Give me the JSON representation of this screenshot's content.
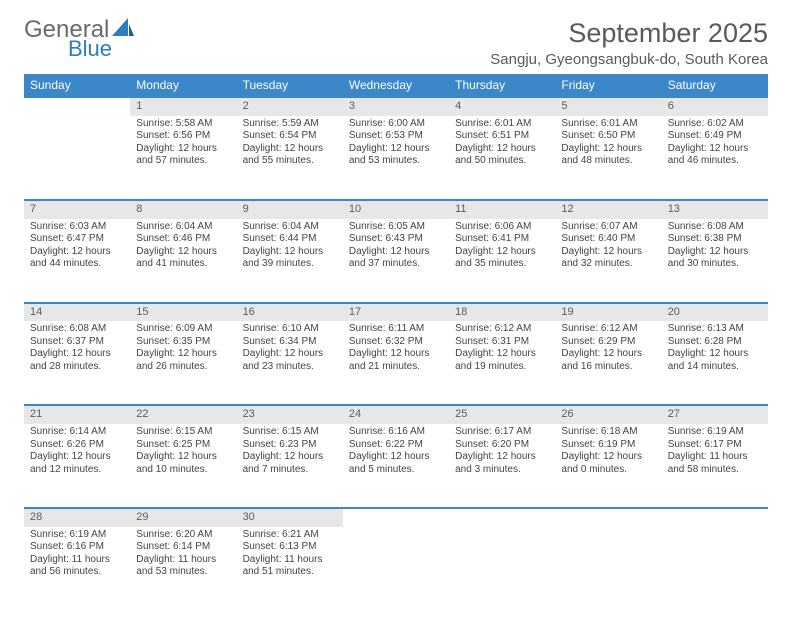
{
  "logo": {
    "text1": "General",
    "text2": "Blue"
  },
  "title": "September 2025",
  "location": "Sangju, Gyeongsangbuk-do, South Korea",
  "colors": {
    "accent": "#3b87c8",
    "dayBg": "#e6e7e8",
    "text": "#444444"
  },
  "dayNames": [
    "Sunday",
    "Monday",
    "Tuesday",
    "Wednesday",
    "Thursday",
    "Friday",
    "Saturday"
  ],
  "weeks": [
    [
      null,
      {
        "n": "1",
        "sr": "5:58 AM",
        "ss": "6:56 PM",
        "dl": "12 hours and 57 minutes."
      },
      {
        "n": "2",
        "sr": "5:59 AM",
        "ss": "6:54 PM",
        "dl": "12 hours and 55 minutes."
      },
      {
        "n": "3",
        "sr": "6:00 AM",
        "ss": "6:53 PM",
        "dl": "12 hours and 53 minutes."
      },
      {
        "n": "4",
        "sr": "6:01 AM",
        "ss": "6:51 PM",
        "dl": "12 hours and 50 minutes."
      },
      {
        "n": "5",
        "sr": "6:01 AM",
        "ss": "6:50 PM",
        "dl": "12 hours and 48 minutes."
      },
      {
        "n": "6",
        "sr": "6:02 AM",
        "ss": "6:49 PM",
        "dl": "12 hours and 46 minutes."
      }
    ],
    [
      {
        "n": "7",
        "sr": "6:03 AM",
        "ss": "6:47 PM",
        "dl": "12 hours and 44 minutes."
      },
      {
        "n": "8",
        "sr": "6:04 AM",
        "ss": "6:46 PM",
        "dl": "12 hours and 41 minutes."
      },
      {
        "n": "9",
        "sr": "6:04 AM",
        "ss": "6:44 PM",
        "dl": "12 hours and 39 minutes."
      },
      {
        "n": "10",
        "sr": "6:05 AM",
        "ss": "6:43 PM",
        "dl": "12 hours and 37 minutes."
      },
      {
        "n": "11",
        "sr": "6:06 AM",
        "ss": "6:41 PM",
        "dl": "12 hours and 35 minutes."
      },
      {
        "n": "12",
        "sr": "6:07 AM",
        "ss": "6:40 PM",
        "dl": "12 hours and 32 minutes."
      },
      {
        "n": "13",
        "sr": "6:08 AM",
        "ss": "6:38 PM",
        "dl": "12 hours and 30 minutes."
      }
    ],
    [
      {
        "n": "14",
        "sr": "6:08 AM",
        "ss": "6:37 PM",
        "dl": "12 hours and 28 minutes."
      },
      {
        "n": "15",
        "sr": "6:09 AM",
        "ss": "6:35 PM",
        "dl": "12 hours and 26 minutes."
      },
      {
        "n": "16",
        "sr": "6:10 AM",
        "ss": "6:34 PM",
        "dl": "12 hours and 23 minutes."
      },
      {
        "n": "17",
        "sr": "6:11 AM",
        "ss": "6:32 PM",
        "dl": "12 hours and 21 minutes."
      },
      {
        "n": "18",
        "sr": "6:12 AM",
        "ss": "6:31 PM",
        "dl": "12 hours and 19 minutes."
      },
      {
        "n": "19",
        "sr": "6:12 AM",
        "ss": "6:29 PM",
        "dl": "12 hours and 16 minutes."
      },
      {
        "n": "20",
        "sr": "6:13 AM",
        "ss": "6:28 PM",
        "dl": "12 hours and 14 minutes."
      }
    ],
    [
      {
        "n": "21",
        "sr": "6:14 AM",
        "ss": "6:26 PM",
        "dl": "12 hours and 12 minutes."
      },
      {
        "n": "22",
        "sr": "6:15 AM",
        "ss": "6:25 PM",
        "dl": "12 hours and 10 minutes."
      },
      {
        "n": "23",
        "sr": "6:15 AM",
        "ss": "6:23 PM",
        "dl": "12 hours and 7 minutes."
      },
      {
        "n": "24",
        "sr": "6:16 AM",
        "ss": "6:22 PM",
        "dl": "12 hours and 5 minutes."
      },
      {
        "n": "25",
        "sr": "6:17 AM",
        "ss": "6:20 PM",
        "dl": "12 hours and 3 minutes."
      },
      {
        "n": "26",
        "sr": "6:18 AM",
        "ss": "6:19 PM",
        "dl": "12 hours and 0 minutes."
      },
      {
        "n": "27",
        "sr": "6:19 AM",
        "ss": "6:17 PM",
        "dl": "11 hours and 58 minutes."
      }
    ],
    [
      {
        "n": "28",
        "sr": "6:19 AM",
        "ss": "6:16 PM",
        "dl": "11 hours and 56 minutes."
      },
      {
        "n": "29",
        "sr": "6:20 AM",
        "ss": "6:14 PM",
        "dl": "11 hours and 53 minutes."
      },
      {
        "n": "30",
        "sr": "6:21 AM",
        "ss": "6:13 PM",
        "dl": "11 hours and 51 minutes."
      },
      null,
      null,
      null,
      null
    ]
  ],
  "labels": {
    "sunrise": "Sunrise:",
    "sunset": "Sunset:",
    "daylight": "Daylight:"
  }
}
